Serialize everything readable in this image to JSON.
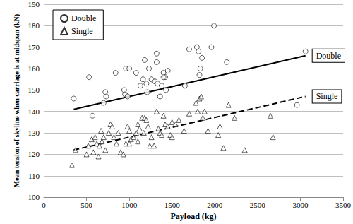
{
  "chart_data": {
    "type": "scatter",
    "x_label": "Payload (kg)",
    "y_label": "Mean tension of skyline when carriage is at midspan (kN)",
    "xlim": [
      0,
      3500
    ],
    "xticks": [
      0,
      500,
      1000,
      1500,
      2000,
      2500,
      3000,
      3500
    ],
    "ylim": [
      100,
      190
    ],
    "yticks": [
      100,
      110,
      120,
      130,
      140,
      150,
      160,
      170,
      180,
      190
    ],
    "grid": true,
    "legend": "top-left",
    "series": [
      {
        "name": "Double",
        "color": "#000000",
        "marker": "circle",
        "line_style": "solid",
        "points": [
          [
            350,
            146
          ],
          [
            530,
            156
          ],
          [
            570,
            138
          ],
          [
            700,
            144
          ],
          [
            720,
            149
          ],
          [
            730,
            147
          ],
          [
            840,
            158
          ],
          [
            940,
            150
          ],
          [
            950,
            148
          ],
          [
            960,
            160
          ],
          [
            980,
            147
          ],
          [
            1000,
            160
          ],
          [
            1080,
            158
          ],
          [
            1130,
            152
          ],
          [
            1160,
            155
          ],
          [
            1180,
            164
          ],
          [
            1200,
            153
          ],
          [
            1210,
            149
          ],
          [
            1230,
            160
          ],
          [
            1260,
            155
          ],
          [
            1300,
            154
          ],
          [
            1320,
            163
          ],
          [
            1330,
            153
          ],
          [
            1360,
            147
          ],
          [
            1380,
            152
          ],
          [
            1400,
            158
          ],
          [
            1420,
            156
          ],
          [
            1430,
            150
          ],
          [
            1450,
            159
          ],
          [
            1650,
            152
          ],
          [
            1700,
            169
          ],
          [
            1790,
            170
          ],
          [
            1810,
            168
          ],
          [
            1820,
            157
          ],
          [
            1830,
            160
          ],
          [
            1850,
            165
          ],
          [
            1960,
            170
          ],
          [
            1990,
            180
          ],
          [
            2140,
            163
          ],
          [
            2960,
            143
          ],
          [
            3060,
            168
          ],
          [
            1320,
            167
          ],
          [
            1400,
            156
          ]
        ],
        "trend": [
          [
            350,
            141
          ],
          [
            3060,
            166
          ]
        ]
      },
      {
        "name": "Single",
        "color": "#000000",
        "marker": "triangle",
        "line_style": "dashed",
        "points": [
          [
            330,
            115
          ],
          [
            370,
            122
          ],
          [
            500,
            120
          ],
          [
            520,
            124
          ],
          [
            560,
            127
          ],
          [
            580,
            121
          ],
          [
            600,
            128
          ],
          [
            620,
            125
          ],
          [
            640,
            119
          ],
          [
            650,
            124
          ],
          [
            670,
            131
          ],
          [
            680,
            126
          ],
          [
            700,
            128
          ],
          [
            720,
            122
          ],
          [
            760,
            130
          ],
          [
            780,
            134
          ],
          [
            800,
            133
          ],
          [
            820,
            128
          ],
          [
            850,
            125
          ],
          [
            870,
            130
          ],
          [
            900,
            121
          ],
          [
            930,
            120
          ],
          [
            960,
            125
          ],
          [
            980,
            133
          ],
          [
            1000,
            131
          ],
          [
            1020,
            127
          ],
          [
            1050,
            128
          ],
          [
            1080,
            130
          ],
          [
            1100,
            134
          ],
          [
            1120,
            132
          ],
          [
            1150,
            137
          ],
          [
            1170,
            130
          ],
          [
            1180,
            137
          ],
          [
            1200,
            136
          ],
          [
            1220,
            133
          ],
          [
            1240,
            124
          ],
          [
            1260,
            128
          ],
          [
            1290,
            124
          ],
          [
            1320,
            140
          ],
          [
            1340,
            132
          ],
          [
            1360,
            130
          ],
          [
            1380,
            129
          ],
          [
            1400,
            138
          ],
          [
            1420,
            134
          ],
          [
            1450,
            133
          ],
          [
            1480,
            129
          ],
          [
            1500,
            135
          ],
          [
            1540,
            134
          ],
          [
            1580,
            136
          ],
          [
            1640,
            131
          ],
          [
            1700,
            139
          ],
          [
            1780,
            144
          ],
          [
            1800,
            140
          ],
          [
            1820,
            146
          ],
          [
            1840,
            147
          ],
          [
            1860,
            137
          ],
          [
            1880,
            140
          ],
          [
            1920,
            131
          ],
          [
            2040,
            129
          ],
          [
            2060,
            133
          ],
          [
            2100,
            123
          ],
          [
            2160,
            143
          ],
          [
            2230,
            137
          ],
          [
            2350,
            122
          ],
          [
            2650,
            138
          ],
          [
            2680,
            128
          ],
          [
            1000,
            125
          ],
          [
            1100,
            126
          ],
          [
            1500,
            128
          ]
        ],
        "trend": [
          [
            350,
            122
          ],
          [
            3060,
            147
          ]
        ]
      }
    ]
  }
}
